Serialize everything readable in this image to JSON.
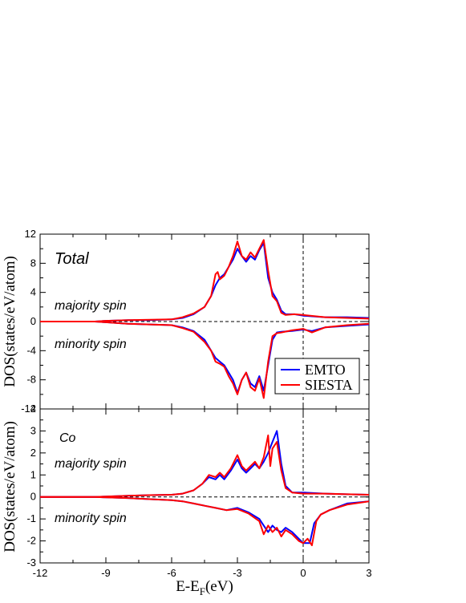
{
  "chart_data": [
    {
      "type": "line",
      "panel": "top",
      "annotations": {
        "title": "Total",
        "majority": "majority spin",
        "minority": "minority spin"
      },
      "ylabel": "DOS(states/eV/atom)",
      "xlim": [
        -12,
        3
      ],
      "ylim": [
        -12,
        12
      ],
      "yticks": [
        12,
        8,
        4,
        0,
        -4,
        -8,
        -12
      ],
      "ytick_labels": [
        "12",
        "8",
        "4",
        "0",
        "-4",
        "-8",
        "-12"
      ],
      "legend": {
        "placement": "lower-right",
        "entries": [
          "EMTO",
          "SIESTA"
        ]
      },
      "series": [
        {
          "name": "EMTO",
          "color": "#0000ff",
          "majority": [
            [
              -12,
              0
            ],
            [
              -9.5,
              0
            ],
            [
              -9,
              0.1
            ],
            [
              -8,
              0.2
            ],
            [
              -7,
              0.2
            ],
            [
              -6,
              0.3
            ],
            [
              -5.5,
              0.5
            ],
            [
              -5,
              1
            ],
            [
              -4.5,
              2
            ],
            [
              -4.2,
              3.5
            ],
            [
              -4,
              5
            ],
            [
              -3.8,
              6
            ],
            [
              -3.6,
              6.5
            ],
            [
              -3.4,
              7.5
            ],
            [
              -3.2,
              8.5
            ],
            [
              -3,
              10
            ],
            [
              -2.8,
              9
            ],
            [
              -2.6,
              8.2
            ],
            [
              -2.4,
              9
            ],
            [
              -2.2,
              8.5
            ],
            [
              -2,
              9.8
            ],
            [
              -1.8,
              10.8
            ],
            [
              -1.6,
              6
            ],
            [
              -1.4,
              4
            ],
            [
              -1.2,
              3
            ],
            [
              -1,
              1.5
            ],
            [
              -0.8,
              1
            ],
            [
              -0.4,
              1
            ],
            [
              0,
              0.8
            ],
            [
              1,
              0.6
            ],
            [
              2,
              0.6
            ],
            [
              3,
              0.5
            ]
          ],
          "minority": [
            [
              -12,
              0
            ],
            [
              -9.5,
              0
            ],
            [
              -9,
              -0.1
            ],
            [
              -8,
              -0.3
            ],
            [
              -7,
              -0.4
            ],
            [
              -6,
              -0.5
            ],
            [
              -5.5,
              -0.8
            ],
            [
              -5,
              -1.3
            ],
            [
              -4.5,
              -2.5
            ],
            [
              -4.2,
              -4
            ],
            [
              -4,
              -5
            ],
            [
              -3.8,
              -5.5
            ],
            [
              -3.6,
              -6
            ],
            [
              -3.4,
              -7
            ],
            [
              -3.2,
              -8
            ],
            [
              -3,
              -9.8
            ],
            [
              -2.8,
              -8
            ],
            [
              -2.6,
              -7
            ],
            [
              -2.4,
              -8.5
            ],
            [
              -2.2,
              -9
            ],
            [
              -2,
              -7.5
            ],
            [
              -1.8,
              -9.5
            ],
            [
              -1.6,
              -6
            ],
            [
              -1.4,
              -2.5
            ],
            [
              -1.2,
              -1.5
            ],
            [
              -1,
              -1.4
            ],
            [
              -0.5,
              -1.3
            ],
            [
              0,
              -1.1
            ],
            [
              0.4,
              -1.3
            ],
            [
              1,
              -0.8
            ],
            [
              2,
              -0.6
            ],
            [
              3,
              -0.4
            ]
          ]
        },
        {
          "name": "SIESTA",
          "color": "#ff0000",
          "majority": [
            [
              -12,
              0
            ],
            [
              -9.5,
              0
            ],
            [
              -9,
              0.1
            ],
            [
              -8,
              0.2
            ],
            [
              -7,
              0.25
            ],
            [
              -6,
              0.3
            ],
            [
              -5.5,
              0.6
            ],
            [
              -5,
              1.1
            ],
            [
              -4.5,
              2
            ],
            [
              -4.2,
              3.5
            ],
            [
              -4,
              6.5
            ],
            [
              -3.9,
              6.8
            ],
            [
              -3.8,
              5.8
            ],
            [
              -3.6,
              6.3
            ],
            [
              -3.4,
              7.5
            ],
            [
              -3.2,
              9
            ],
            [
              -3,
              11
            ],
            [
              -2.8,
              9
            ],
            [
              -2.6,
              8.5
            ],
            [
              -2.4,
              9.5
            ],
            [
              -2.2,
              8.8
            ],
            [
              -2,
              10
            ],
            [
              -1.8,
              11.2
            ],
            [
              -1.6,
              7
            ],
            [
              -1.4,
              3.5
            ],
            [
              -1.2,
              2.8
            ],
            [
              -1,
              1.2
            ],
            [
              -0.8,
              0.9
            ],
            [
              -0.4,
              1
            ],
            [
              0,
              0.9
            ],
            [
              1,
              0.6
            ],
            [
              2,
              0.5
            ],
            [
              3,
              0.4
            ]
          ],
          "minority": [
            [
              -12,
              0
            ],
            [
              -9.5,
              0
            ],
            [
              -9,
              -0.1
            ],
            [
              -8,
              -0.3
            ],
            [
              -7,
              -0.4
            ],
            [
              -6,
              -0.5
            ],
            [
              -5.5,
              -0.9
            ],
            [
              -5,
              -1.4
            ],
            [
              -4.5,
              -2.8
            ],
            [
              -4.2,
              -4
            ],
            [
              -4,
              -5.5
            ],
            [
              -3.8,
              -5.8
            ],
            [
              -3.6,
              -6.2
            ],
            [
              -3.4,
              -7.5
            ],
            [
              -3.2,
              -8.5
            ],
            [
              -3,
              -10
            ],
            [
              -2.8,
              -8
            ],
            [
              -2.6,
              -7
            ],
            [
              -2.4,
              -9
            ],
            [
              -2.2,
              -9.5
            ],
            [
              -2,
              -7.8
            ],
            [
              -1.8,
              -10.5
            ],
            [
              -1.6,
              -5.5
            ],
            [
              -1.4,
              -2
            ],
            [
              -1.2,
              -1.6
            ],
            [
              -1,
              -1.5
            ],
            [
              -0.5,
              -1.2
            ],
            [
              0,
              -1
            ],
            [
              0.4,
              -1.5
            ],
            [
              1,
              -0.8
            ],
            [
              2,
              -0.5
            ],
            [
              3,
              -0.3
            ]
          ]
        }
      ]
    },
    {
      "type": "line",
      "panel": "bottom",
      "annotations": {
        "title": "Co",
        "majority": "majority spin",
        "minority": "minority spin"
      },
      "ylabel": "DOS(states/eV/atom)",
      "xlabel_main": "E-E",
      "xlabel_sub": "F",
      "xlabel_tail": "(eV)",
      "xlim": [
        -12,
        3
      ],
      "ylim": [
        -3,
        4
      ],
      "xticks": [
        -12,
        -9,
        -6,
        -3,
        0,
        3
      ],
      "xtick_labels": [
        "-12",
        "-9",
        "-6",
        "-3",
        "0",
        "3"
      ],
      "yticks": [
        4,
        3,
        2,
        1,
        0,
        -1,
        -2,
        -3
      ],
      "ytick_labels": [
        "4",
        "3",
        "2",
        "1",
        "0",
        "-1",
        "-2",
        "-3"
      ],
      "series": [
        {
          "name": "EMTO",
          "color": "#0000ff",
          "majority": [
            [
              -12,
              0
            ],
            [
              -9.5,
              0
            ],
            [
              -9,
              0.02
            ],
            [
              -8,
              0.05
            ],
            [
              -7,
              0.08
            ],
            [
              -6,
              0.1
            ],
            [
              -5.5,
              0.15
            ],
            [
              -5,
              0.3
            ],
            [
              -4.6,
              0.6
            ],
            [
              -4.3,
              0.9
            ],
            [
              -4,
              0.8
            ],
            [
              -3.8,
              1
            ],
            [
              -3.6,
              0.8
            ],
            [
              -3.3,
              1.2
            ],
            [
              -3,
              1.7
            ],
            [
              -2.8,
              1.3
            ],
            [
              -2.6,
              1.1
            ],
            [
              -2.4,
              1.3
            ],
            [
              -2.2,
              1.5
            ],
            [
              -2,
              1.3
            ],
            [
              -1.8,
              1.6
            ],
            [
              -1.6,
              2
            ],
            [
              -1.4,
              2.5
            ],
            [
              -1.2,
              3
            ],
            [
              -1,
              1.5
            ],
            [
              -0.8,
              0.5
            ],
            [
              -0.5,
              0.2
            ],
            [
              0,
              0.2
            ],
            [
              1,
              0.15
            ],
            [
              2,
              0.12
            ],
            [
              3,
              0.1
            ]
          ],
          "minority": [
            [
              -12,
              0
            ],
            [
              -9.5,
              0
            ],
            [
              -9,
              -0.02
            ],
            [
              -8,
              -0.05
            ],
            [
              -7,
              -0.1
            ],
            [
              -6,
              -0.15
            ],
            [
              -5.5,
              -0.2
            ],
            [
              -5,
              -0.3
            ],
            [
              -4.5,
              -0.4
            ],
            [
              -4,
              -0.5
            ],
            [
              -3.5,
              -0.6
            ],
            [
              -3,
              -0.5
            ],
            [
              -2.5,
              -0.7
            ],
            [
              -2,
              -1
            ],
            [
              -1.8,
              -1.3
            ],
            [
              -1.6,
              -1.6
            ],
            [
              -1.4,
              -1.3
            ],
            [
              -1.2,
              -1.5
            ],
            [
              -1,
              -1.6
            ],
            [
              -0.8,
              -1.4
            ],
            [
              -0.5,
              -1.6
            ],
            [
              -0.2,
              -1.9
            ],
            [
              0,
              -2.1
            ],
            [
              0.3,
              -2.1
            ],
            [
              0.5,
              -1.2
            ],
            [
              0.8,
              -0.8
            ],
            [
              1.2,
              -0.6
            ],
            [
              2,
              -0.3
            ],
            [
              3,
              -0.2
            ]
          ]
        },
        {
          "name": "SIESTA",
          "color": "#ff0000",
          "majority": [
            [
              -12,
              0
            ],
            [
              -9.5,
              0
            ],
            [
              -9,
              0.02
            ],
            [
              -8,
              0.05
            ],
            [
              -7,
              0.08
            ],
            [
              -6,
              0.1
            ],
            [
              -5.5,
              0.15
            ],
            [
              -5,
              0.3
            ],
            [
              -4.6,
              0.6
            ],
            [
              -4.3,
              1
            ],
            [
              -4,
              0.9
            ],
            [
              -3.8,
              1.1
            ],
            [
              -3.6,
              0.9
            ],
            [
              -3.3,
              1.3
            ],
            [
              -3,
              1.9
            ],
            [
              -2.8,
              1.4
            ],
            [
              -2.6,
              1.2
            ],
            [
              -2.4,
              1.4
            ],
            [
              -2.2,
              1.6
            ],
            [
              -2,
              1.3
            ],
            [
              -1.8,
              1.8
            ],
            [
              -1.6,
              2.8
            ],
            [
              -1.5,
              1.4
            ],
            [
              -1.4,
              2.2
            ],
            [
              -1.2,
              2.5
            ],
            [
              -1,
              1.2
            ],
            [
              -0.8,
              0.4
            ],
            [
              -0.5,
              0.2
            ],
            [
              0,
              0.15
            ],
            [
              1,
              0.15
            ],
            [
              2,
              0.12
            ],
            [
              3,
              0.1
            ]
          ],
          "minority": [
            [
              -12,
              0
            ],
            [
              -9.5,
              0
            ],
            [
              -9,
              -0.02
            ],
            [
              -8,
              -0.05
            ],
            [
              -7,
              -0.1
            ],
            [
              -6,
              -0.15
            ],
            [
              -5.5,
              -0.2
            ],
            [
              -5,
              -0.3
            ],
            [
              -4.5,
              -0.4
            ],
            [
              -4,
              -0.5
            ],
            [
              -3.5,
              -0.6
            ],
            [
              -3,
              -0.55
            ],
            [
              -2.5,
              -0.75
            ],
            [
              -2,
              -1.1
            ],
            [
              -1.8,
              -1.7
            ],
            [
              -1.6,
              -1.3
            ],
            [
              -1.4,
              -1.6
            ],
            [
              -1.2,
              -1.4
            ],
            [
              -1,
              -1.8
            ],
            [
              -0.8,
              -1.5
            ],
            [
              -0.5,
              -1.7
            ],
            [
              -0.2,
              -2
            ],
            [
              0,
              -2.1
            ],
            [
              0.2,
              -1.9
            ],
            [
              0.4,
              -2.2
            ],
            [
              0.6,
              -1.1
            ],
            [
              0.8,
              -0.8
            ],
            [
              1.2,
              -0.6
            ],
            [
              2,
              -0.35
            ],
            [
              3,
              -0.2
            ]
          ]
        }
      ]
    }
  ]
}
